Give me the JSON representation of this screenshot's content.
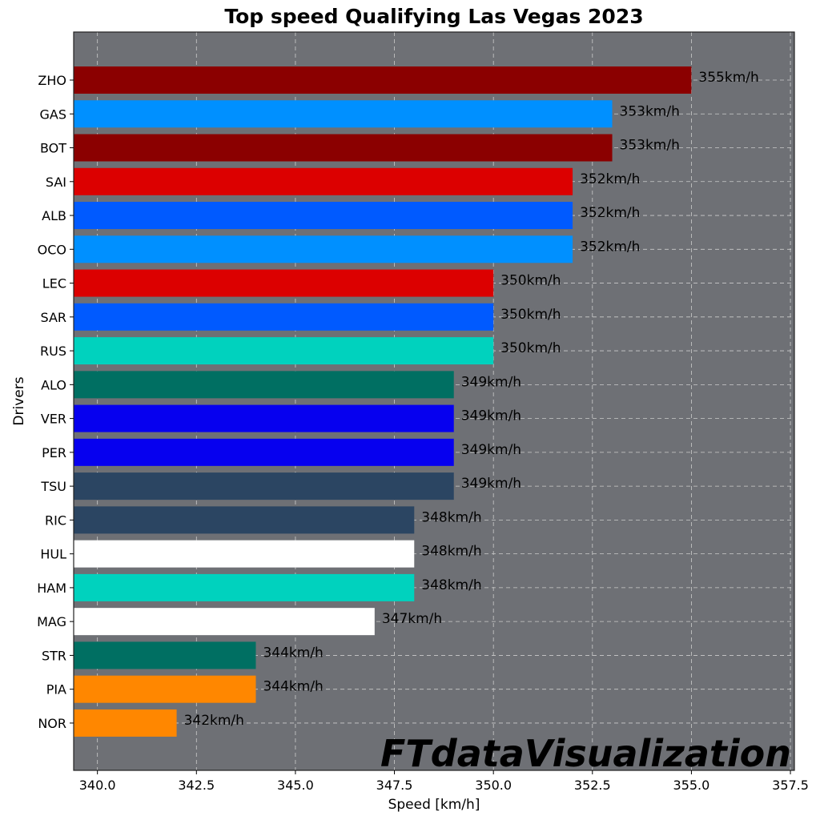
{
  "chart_data": {
    "type": "bar",
    "orientation": "horizontal",
    "title": "Top speed Qualifying Las Vegas 2023",
    "xlabel": "Speed [km/h]",
    "ylabel": "Drivers",
    "xlim": [
      339.4,
      357.6
    ],
    "xticks": [
      "340.0",
      "342.5",
      "345.0",
      "347.5",
      "350.0",
      "352.5",
      "355.0",
      "357.5"
    ],
    "grid": true,
    "background": "#6e7075",
    "value_suffix": "km/h",
    "watermark": "FTdataVisualization",
    "categories": [
      "ZHO",
      "GAS",
      "BOT",
      "SAI",
      "ALB",
      "OCO",
      "LEC",
      "SAR",
      "RUS",
      "ALO",
      "VER",
      "PER",
      "TSU",
      "RIC",
      "HUL",
      "HAM",
      "MAG",
      "STR",
      "PIA",
      "NOR"
    ],
    "values": [
      355,
      353,
      353,
      352,
      352,
      352,
      350,
      350,
      350,
      349,
      349,
      349,
      349,
      348,
      348,
      348,
      347,
      344,
      344,
      342
    ],
    "colors": [
      "#8b0000",
      "#0090ff",
      "#8b0000",
      "#dc0000",
      "#005aff",
      "#0090ff",
      "#dc0000",
      "#005aff",
      "#00d2be",
      "#006f62",
      "#0600ef",
      "#0600ef",
      "#2b4562",
      "#2b4562",
      "#ffffff",
      "#00d2be",
      "#ffffff",
      "#006f62",
      "#ff8700",
      "#ff8700"
    ]
  }
}
